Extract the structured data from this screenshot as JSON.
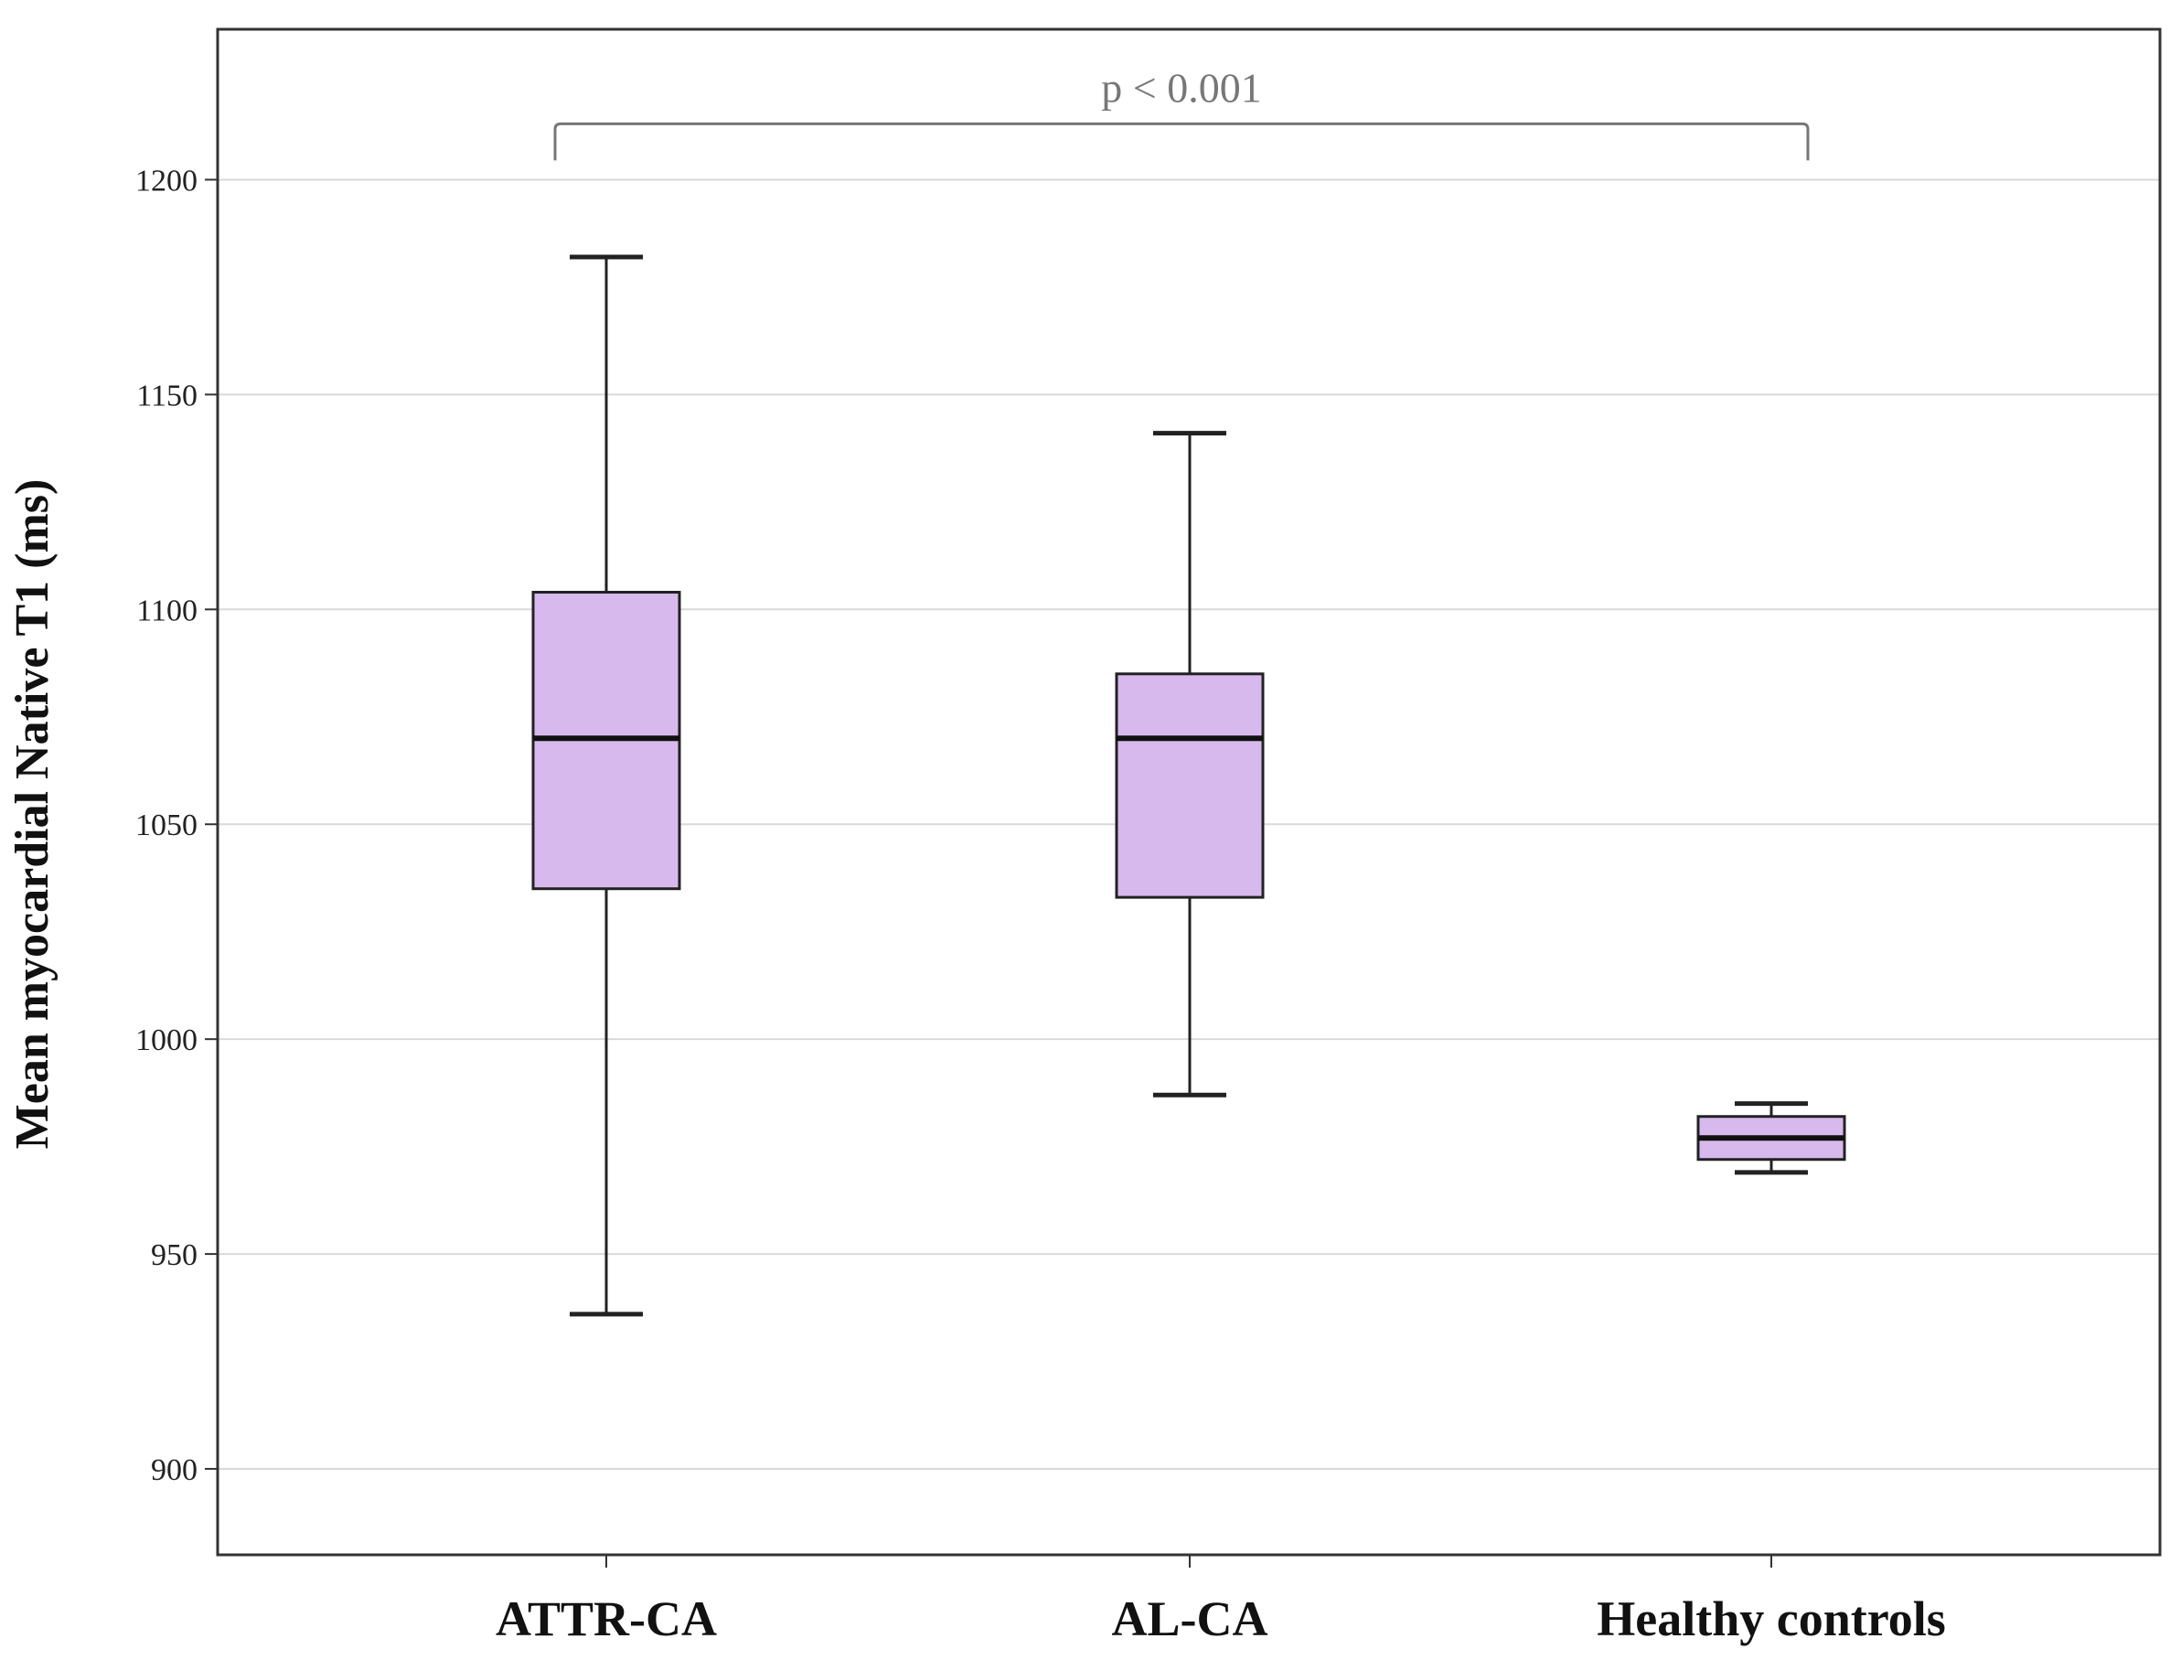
{
  "chart_data": {
    "type": "boxplot",
    "title": "",
    "xlabel": "",
    "ylabel": "Mean myocardial Native T1 (ms)",
    "ylim": [
      880,
      1235
    ],
    "yticks": [
      900,
      950,
      1000,
      1050,
      1100,
      1150,
      1200
    ],
    "grid": true,
    "categories": [
      "ATTR-CA",
      "AL-CA",
      "Healthy controls"
    ],
    "boxes": [
      {
        "name": "ATTR-CA",
        "whisker_low": 936,
        "q1": 1035,
        "median": 1070,
        "q3": 1104,
        "whisker_high": 1182
      },
      {
        "name": "AL-CA",
        "whisker_low": 987,
        "q1": 1033,
        "median": 1070,
        "q3": 1085,
        "whisker_high": 1141
      },
      {
        "name": "Healthy controls",
        "whisker_low": 969,
        "q1": 972,
        "median": 977,
        "q3": 982,
        "whisker_high": 985
      }
    ],
    "annotations": [
      {
        "text": "p < 0.001",
        "from": "ATTR-CA",
        "to": "Healthy controls",
        "value": 1213
      }
    ],
    "colors": {
      "box_fill": "#d7b9ee",
      "box_stroke": "#222222",
      "median": "#111111",
      "grid": "#d9d9d9",
      "bracket": "#777777"
    }
  }
}
